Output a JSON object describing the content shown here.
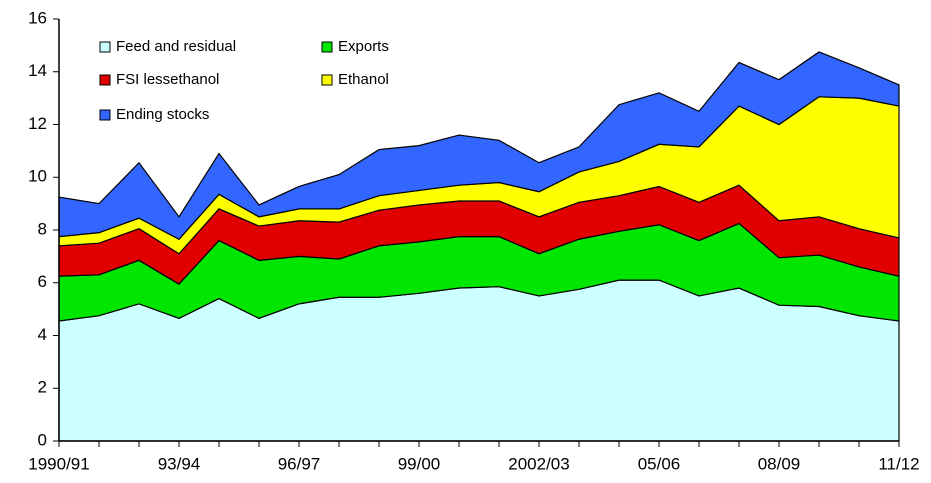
{
  "chart_data": {
    "type": "stacked_area",
    "categories": [
      "1990/91",
      null,
      null,
      "93/94",
      null,
      null,
      "96/97",
      null,
      null,
      "99/00",
      null,
      null,
      "2002/03",
      null,
      null,
      "05/06",
      null,
      null,
      "08/09",
      null,
      null,
      "11/12"
    ],
    "series": [
      {
        "name": "Feed and residual",
        "color": "#ccffff",
        "values": [
          4.55,
          4.75,
          5.2,
          4.65,
          5.4,
          4.65,
          5.2,
          5.45,
          5.45,
          5.6,
          5.8,
          5.85,
          5.5,
          5.75,
          6.1,
          6.1,
          5.5,
          5.8,
          5.15,
          5.1,
          4.75,
          4.55
        ]
      },
      {
        "name": "Exports",
        "color": "#00e600",
        "values": [
          1.7,
          1.55,
          1.65,
          1.3,
          2.2,
          2.2,
          1.8,
          1.45,
          1.95,
          1.95,
          1.95,
          1.9,
          1.6,
          1.9,
          1.85,
          2.1,
          2.1,
          2.45,
          1.8,
          1.95,
          1.85,
          1.7
        ]
      },
      {
        "name": "FSI lessethanol",
        "color": "#e00000",
        "values": [
          1.15,
          1.2,
          1.2,
          1.15,
          1.2,
          1.3,
          1.35,
          1.4,
          1.35,
          1.4,
          1.35,
          1.35,
          1.4,
          1.4,
          1.35,
          1.45,
          1.45,
          1.45,
          1.4,
          1.45,
          1.45,
          1.45
        ]
      },
      {
        "name": "Ethanol",
        "color": "#ffff00",
        "values": [
          0.35,
          0.4,
          0.4,
          0.55,
          0.55,
          0.35,
          0.45,
          0.5,
          0.55,
          0.55,
          0.6,
          0.7,
          0.95,
          1.15,
          1.3,
          1.6,
          2.1,
          3.0,
          3.65,
          4.55,
          4.95,
          5.0
        ]
      },
      {
        "name": "Ending stocks",
        "color": "#3366ff",
        "values": [
          1.5,
          1.1,
          2.1,
          0.85,
          1.55,
          0.45,
          0.85,
          1.3,
          1.75,
          1.7,
          1.9,
          1.6,
          1.1,
          0.95,
          2.15,
          1.95,
          1.35,
          1.65,
          1.7,
          1.7,
          1.15,
          0.8
        ]
      }
    ],
    "ylim": [
      0,
      16
    ],
    "yticks": [
      0,
      2,
      4,
      6,
      8,
      10,
      12,
      14,
      16
    ]
  }
}
